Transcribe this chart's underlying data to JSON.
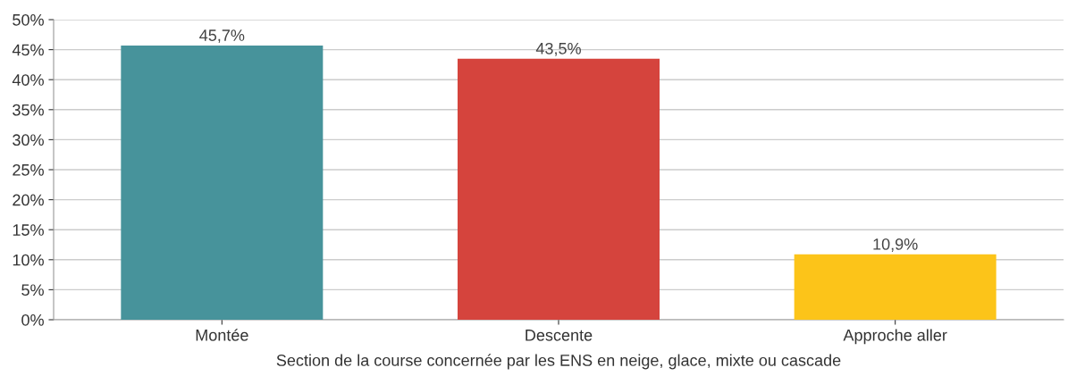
{
  "chart_data": {
    "type": "bar",
    "xlabel": "Section de la course concernée par les ENS en neige, glace, mixte ou cascade",
    "categories": [
      "Montée",
      "Descente",
      "Approche aller"
    ],
    "values": [
      45.7,
      43.5,
      10.9
    ],
    "colors": [
      "#47939b",
      "#d5443d",
      "#fcc419"
    ],
    "value_labels": [
      "45,7%",
      "43,5%",
      "10,9%"
    ],
    "ylim": [
      0,
      50
    ],
    "yticks": [
      {
        "value": 0,
        "label": "0%"
      },
      {
        "value": 5,
        "label": "5%"
      },
      {
        "value": 10,
        "label": "10%"
      },
      {
        "value": 15,
        "label": "15%"
      },
      {
        "value": 20,
        "label": "20%"
      },
      {
        "value": 25,
        "label": "25%"
      },
      {
        "value": 30,
        "label": "30%"
      },
      {
        "value": 35,
        "label": "35%"
      },
      {
        "value": 40,
        "label": "40%"
      },
      {
        "value": 45,
        "label": "45%"
      },
      {
        "value": 50,
        "label": "50%"
      }
    ],
    "grid": "y"
  }
}
